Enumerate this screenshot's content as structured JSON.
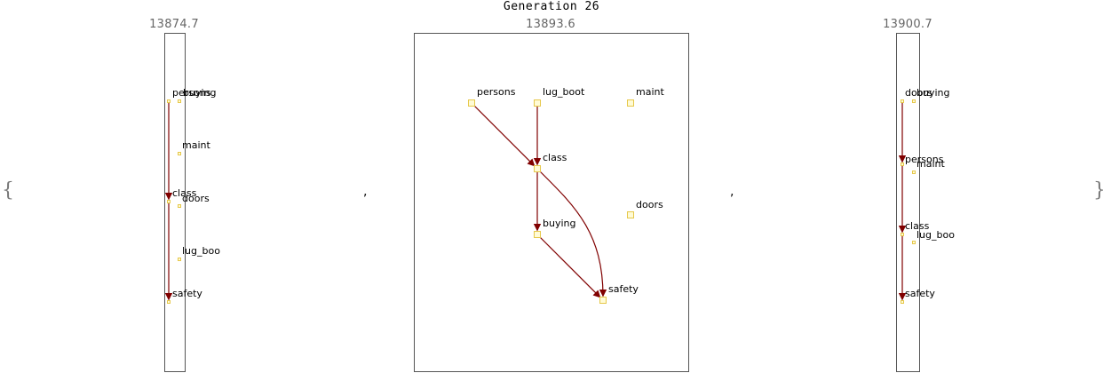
{
  "title": "Generation 26",
  "open_brace": "{",
  "close_brace": "}",
  "separator": ",",
  "graphs": [
    {
      "score": "13874.7",
      "nodes": [
        {
          "id": "persons",
          "label": "persons"
        },
        {
          "id": "buying",
          "label": "buying"
        },
        {
          "id": "maint",
          "label": "maint"
        },
        {
          "id": "class",
          "label": "class"
        },
        {
          "id": "doors",
          "label": "doors"
        },
        {
          "id": "lug_boot",
          "label": "lug_boo"
        },
        {
          "id": "safety",
          "label": "safety"
        }
      ],
      "edges": [
        [
          "persons",
          "class"
        ],
        [
          "class",
          "safety"
        ]
      ]
    },
    {
      "score": "13893.6",
      "nodes": [
        {
          "id": "persons",
          "label": "persons"
        },
        {
          "id": "lug_boot",
          "label": "lug_boot"
        },
        {
          "id": "maint",
          "label": "maint"
        },
        {
          "id": "class",
          "label": "class"
        },
        {
          "id": "doors",
          "label": "doors"
        },
        {
          "id": "buying",
          "label": "buying"
        },
        {
          "id": "safety",
          "label": "safety"
        }
      ],
      "edges": [
        [
          "persons",
          "class"
        ],
        [
          "lug_boot",
          "class"
        ],
        [
          "class",
          "buying"
        ],
        [
          "class",
          "safety"
        ],
        [
          "buying",
          "safety"
        ]
      ]
    },
    {
      "score": "13900.7",
      "nodes": [
        {
          "id": "doors",
          "label": "doors"
        },
        {
          "id": "buying",
          "label": "buying"
        },
        {
          "id": "persons",
          "label": "persons"
        },
        {
          "id": "maint",
          "label": "maint"
        },
        {
          "id": "class",
          "label": "class"
        },
        {
          "id": "lug_boot",
          "label": "lug_boo"
        },
        {
          "id": "safety",
          "label": "safety"
        }
      ],
      "edges": [
        [
          "doors",
          "persons"
        ],
        [
          "persons",
          "class"
        ],
        [
          "class",
          "safety"
        ]
      ]
    }
  ],
  "colors": {
    "edge": "#800000",
    "node_fill": "#fffbd6",
    "node_stroke": "#e6c84a",
    "panel_border": "#555555"
  }
}
